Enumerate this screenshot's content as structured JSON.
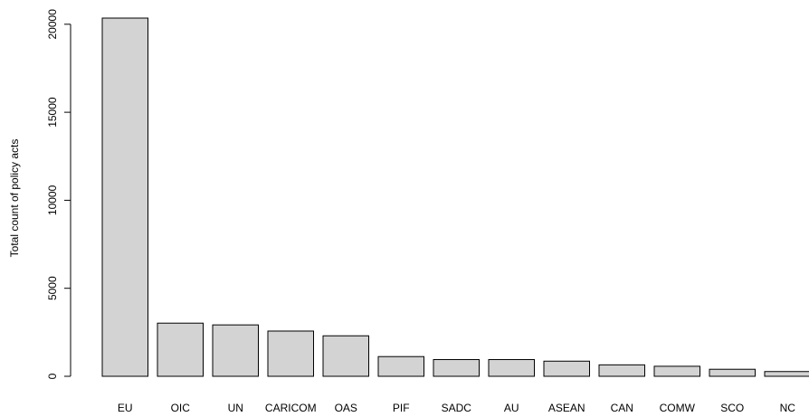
{
  "chart_data": {
    "type": "bar",
    "title": "",
    "xlabel": "",
    "ylabel": "Total count of policy acts",
    "categories": [
      "EU",
      "OIC",
      "UN",
      "CARICOM",
      "OAS",
      "PIF",
      "SADC",
      "AU",
      "ASEAN",
      "CAN",
      "COMW",
      "SCO",
      "NC"
    ],
    "values": [
      20350,
      3020,
      2920,
      2570,
      2300,
      1120,
      950,
      950,
      860,
      650,
      570,
      400,
      270
    ],
    "yticks": [
      0,
      5000,
      10000,
      15000,
      20000
    ],
    "ylim": [
      0,
      20350
    ],
    "bar_color": "#d3d3d3",
    "grid": false,
    "legend": "none"
  }
}
